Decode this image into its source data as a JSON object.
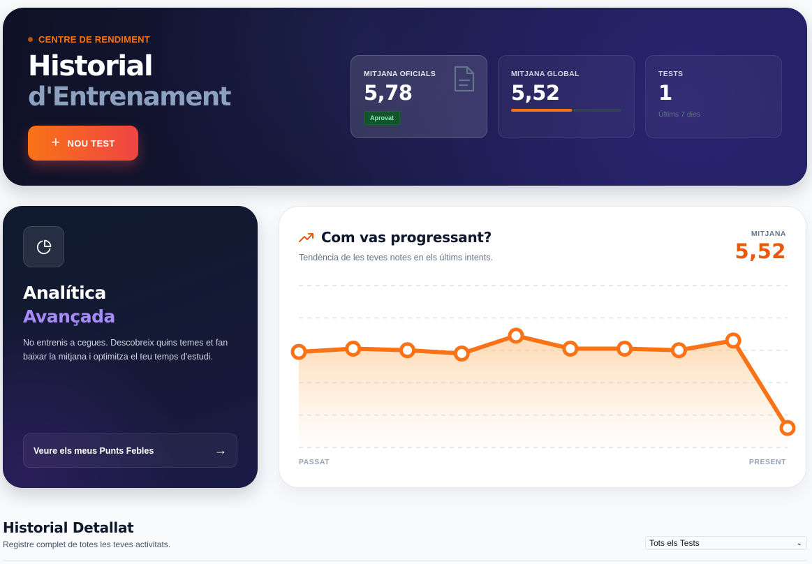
{
  "hero": {
    "eyebrow": "CENTRE DE RENDIMENT",
    "title_line1": "Historial",
    "title_line2": "d'Entrenament",
    "new_test_label": "NOU TEST",
    "stats": [
      {
        "label": "MITJANA OFICIALS",
        "value": "5,78",
        "badge": "Aprovat",
        "icon": "document-icon"
      },
      {
        "label": "MITJANA GLOBAL",
        "value": "5,52",
        "progress": 0.55
      },
      {
        "label": "TESTS",
        "value": "1",
        "sub": "Últims 7 dies"
      }
    ]
  },
  "analytics": {
    "icon": "pie-chart-icon",
    "title_line1": "Analítica",
    "title_line2": "Avançada",
    "description": "No entrenis a cegues. Descobreix quins temes et fan baixar la mitjana i optimitza el teu temps d'estudi.",
    "button_label": "Veure els meus Punts Febles",
    "button_icon": "arrow-right-icon"
  },
  "progress": {
    "icon": "trending-up-icon",
    "title": "Com vas progressant?",
    "subtitle": "Tendència de les teves notes en els últims intents.",
    "avg_label": "MITJANA",
    "avg_value": "5,52",
    "x_start_label": "PASSAT",
    "x_end_label": "PRESENT"
  },
  "chart_data": {
    "type": "line",
    "title": "Com vas progressant?",
    "xlabel": "",
    "ylabel": "",
    "x": [
      1,
      2,
      3,
      4,
      5,
      6,
      7,
      8,
      9,
      10
    ],
    "values": [
      5.9,
      6.1,
      6.0,
      5.8,
      6.9,
      6.1,
      6.1,
      6.0,
      6.6,
      1.2
    ],
    "ylim": [
      0,
      10
    ],
    "grid": true,
    "legend": "none",
    "line_color": "#f97316"
  },
  "history": {
    "title": "Historial Detallat",
    "subtitle": "Registre complet de totes les teves activitats.",
    "filter_value": "Tots els Tests"
  },
  "colors": {
    "accent": "#f97316",
    "accent_red": "#ef4444",
    "violet": "#a78bfa",
    "success_bg": "#14532d",
    "success_text": "#86efac"
  }
}
